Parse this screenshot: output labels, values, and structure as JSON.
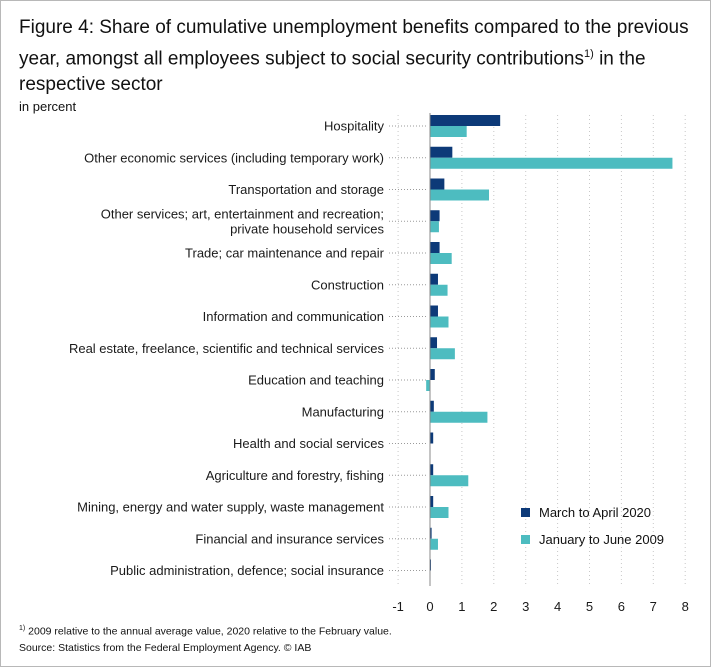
{
  "title": {
    "text": "Figure 4: Share of cumulative unemployment benefits compared to the previous year, amongst all employees subject to social security contributions",
    "superscript": "1)",
    "suffix": "in the respective sector"
  },
  "unit_label": "in percent",
  "footnote": {
    "marker": "1)",
    "note": "2009 relative to the annual average value, 2020 relative to the February value.",
    "source": "Source: Statistics from the Federal Employment Agency. © IAB"
  },
  "colors": {
    "series_2020": "#0d3a78",
    "series_2009": "#4dbcc0",
    "grid": "#c8c8c8",
    "leader": "#9a9a9a",
    "axis": "#888888"
  },
  "chart_data": {
    "type": "bar",
    "orientation": "horizontal",
    "categories": [
      "Hospitality",
      "Other economic services (including temporary work)",
      "Transportation and storage",
      "Other services; art, entertainment and recreation; private household services",
      "Trade; car maintenance and repair",
      "Construction",
      "Information and communication",
      "Real estate, freelance, scientific and technical services",
      "Education and teaching",
      "Manufacturing",
      "Health and social services",
      "Agriculture and forestry, fishing",
      "Mining, energy and water supply, waste management",
      "Financial and insurance services",
      "Public administration, defence; social insurance"
    ],
    "category_lines": [
      [
        "Hospitality"
      ],
      [
        "Other economic services (including temporary work)"
      ],
      [
        "Transportation and storage"
      ],
      [
        "Other services; art, entertainment and recreation;",
        "private household services"
      ],
      [
        "Trade; car maintenance and repair"
      ],
      [
        "Construction"
      ],
      [
        "Information and communication"
      ],
      [
        "Real estate, freelance, scientific and technical services"
      ],
      [
        "Education and teaching"
      ],
      [
        "Manufacturing"
      ],
      [
        "Health and social services"
      ],
      [
        "Agriculture and forestry, fishing"
      ],
      [
        "Mining, energy and water supply, waste management"
      ],
      [
        "Financial and insurance services"
      ],
      [
        "Public administration, defence; social insurance"
      ]
    ],
    "series": [
      {
        "name": "March to April 2020",
        "color": "#0d3a78",
        "values": [
          2.2,
          0.7,
          0.45,
          0.3,
          0.3,
          0.25,
          0.25,
          0.22,
          0.15,
          0.12,
          0.1,
          0.1,
          0.1,
          0.05,
          0.02
        ]
      },
      {
        "name": "January to June 2009",
        "color": "#4dbcc0",
        "values": [
          1.15,
          7.6,
          1.85,
          0.28,
          0.68,
          0.55,
          0.58,
          0.78,
          -0.12,
          1.8,
          0.0,
          1.2,
          0.58,
          0.25,
          0.0
        ]
      }
    ],
    "xlim": [
      -1,
      8
    ],
    "xticks": [
      -1,
      0,
      1,
      2,
      3,
      4,
      5,
      6,
      7,
      8
    ],
    "grid": "vertical dotted",
    "legend": "bottom-right"
  }
}
